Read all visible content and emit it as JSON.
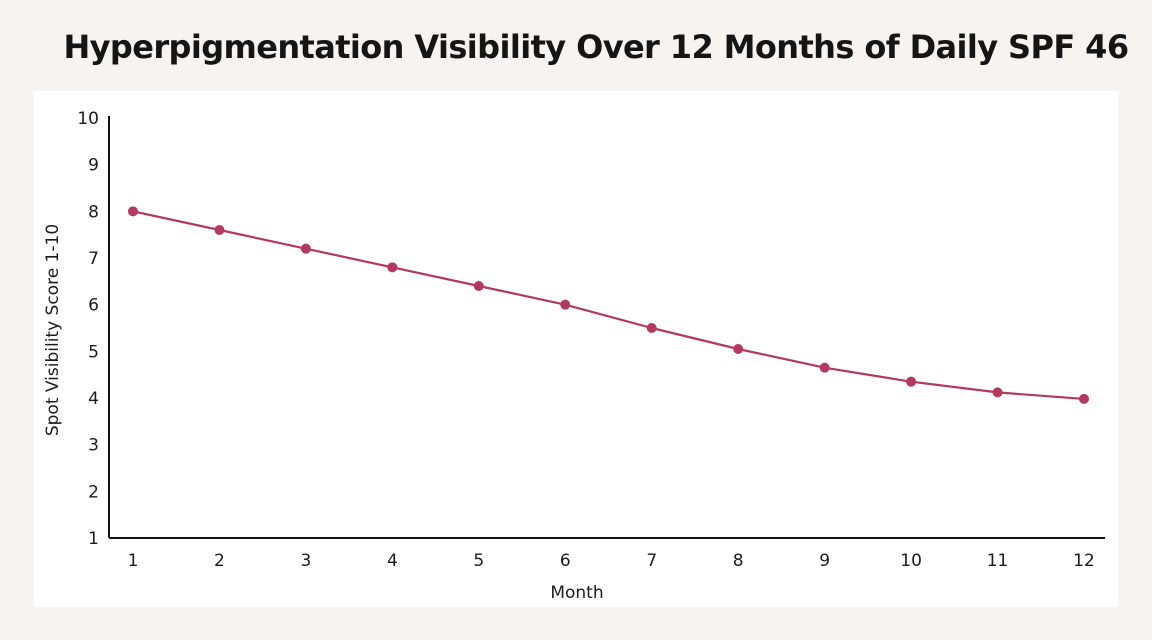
{
  "chart_data": {
    "type": "line",
    "title": "Hyperpigmentation Visibility Over 12 Months of Daily SPF 46",
    "xlabel": "Month",
    "ylabel": "Spot Visibility Score 1-10",
    "x": [
      1,
      2,
      3,
      4,
      5,
      6,
      7,
      8,
      9,
      10,
      11,
      12
    ],
    "series": [
      {
        "values": [
          8.0,
          7.6,
          7.2,
          6.8,
          6.4,
          6.0,
          5.5,
          5.05,
          4.65,
          4.35,
          4.12,
          3.98
        ]
      }
    ],
    "ylim": [
      1,
      10
    ],
    "yticks": [
      1,
      2,
      3,
      4,
      5,
      6,
      7,
      8,
      9,
      10
    ],
    "xticks": [
      1,
      2,
      3,
      4,
      5,
      6,
      7,
      8,
      9,
      10,
      11,
      12
    ],
    "grid": false,
    "legend": "none",
    "colors": {
      "line": "#b3395f",
      "axis": "#111111",
      "panel": "#ffffff",
      "background": "#f7f3f0"
    }
  }
}
